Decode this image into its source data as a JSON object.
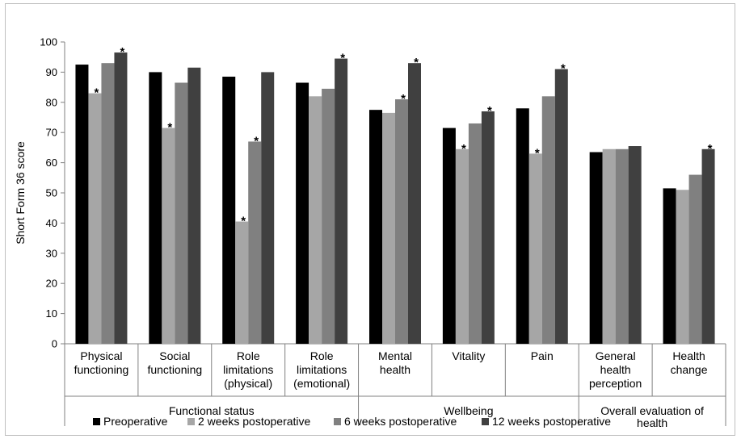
{
  "chart_data": {
    "type": "bar",
    "ylabel": "Short Form 36 score",
    "ylim": [
      0,
      100
    ],
    "yticks": [
      "0",
      "10",
      "20",
      "30",
      "40",
      "50",
      "60",
      "70",
      "80",
      "90",
      "100"
    ],
    "categories": [
      [
        "Physical",
        "functioning"
      ],
      [
        "Social",
        "functioning"
      ],
      [
        "Role",
        "limitations",
        "(physical)"
      ],
      [
        "Role",
        "limitations",
        "(emotional)"
      ],
      [
        "Mental",
        "health"
      ],
      [
        "Vitality"
      ],
      [
        "Pain"
      ],
      [
        "General",
        "health",
        "perception"
      ],
      [
        "Health",
        "change"
      ]
    ],
    "groups": [
      {
        "label": "Functional status",
        "span": [
          0,
          3
        ]
      },
      {
        "label": "Wellbeing",
        "span": [
          4,
          6
        ]
      },
      {
        "label": "Overall evaluation of health",
        "lines": [
          "Overall evaluation of",
          "health"
        ],
        "span": [
          7,
          8
        ]
      }
    ],
    "series": [
      {
        "name": "Preoperative",
        "color": "#000000",
        "values": [
          92.5,
          90,
          88.5,
          86.5,
          77.5,
          71.5,
          78,
          63.5,
          51.5
        ]
      },
      {
        "name": "2 weeks postoperative",
        "color": "#a6a6a6",
        "values": [
          83,
          71.5,
          40.5,
          82,
          76.5,
          64.5,
          63,
          64.5,
          51
        ]
      },
      {
        "name": "6 weeks postoperative",
        "color": "#808080",
        "values": [
          93,
          86.5,
          67,
          84.5,
          81,
          73,
          82,
          64.5,
          56
        ]
      },
      {
        "name": "12 weeks postoperative",
        "color": "#404040",
        "values": [
          96.5,
          91.5,
          90,
          94.5,
          93,
          77,
          91,
          65.5,
          64.5
        ]
      }
    ],
    "significance_marker": "*",
    "significant": [
      [
        false,
        true,
        false,
        true
      ],
      [
        false,
        true,
        false,
        false
      ],
      [
        false,
        true,
        true,
        false
      ],
      [
        false,
        false,
        false,
        true
      ],
      [
        false,
        false,
        true,
        true
      ],
      [
        false,
        true,
        false,
        true
      ],
      [
        false,
        true,
        false,
        true
      ],
      [
        false,
        false,
        false,
        false
      ],
      [
        false,
        false,
        false,
        true
      ]
    ],
    "grid": false,
    "legend": "bottom"
  }
}
